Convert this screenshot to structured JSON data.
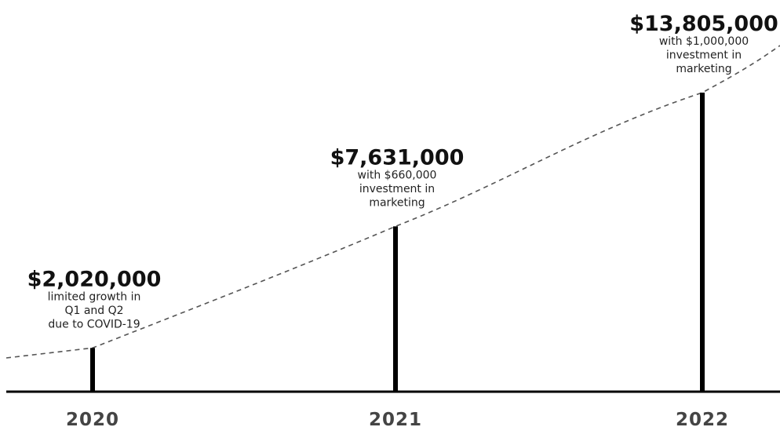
{
  "chart_data": {
    "type": "bar",
    "categories": [
      "2020",
      "2021",
      "2022"
    ],
    "values": [
      2020000,
      7631000,
      13805000
    ],
    "value_labels": [
      "$2,020,000",
      "$7,631,000",
      "$13,805,000"
    ],
    "annotations": [
      [
        "limited growth in",
        "Q1 and Q2",
        "due to COVID-19"
      ],
      [
        "with $660,000",
        "investment in",
        "marketing"
      ],
      [
        "with $1,000,000",
        "investment in",
        "marketing"
      ]
    ],
    "ylim": [
      0,
      13805000
    ],
    "trend_line": "dashed",
    "grid": false,
    "colors": {
      "bars": "#000000",
      "axis": "#000000",
      "trend": "#555555",
      "year_text": "#444444"
    }
  }
}
